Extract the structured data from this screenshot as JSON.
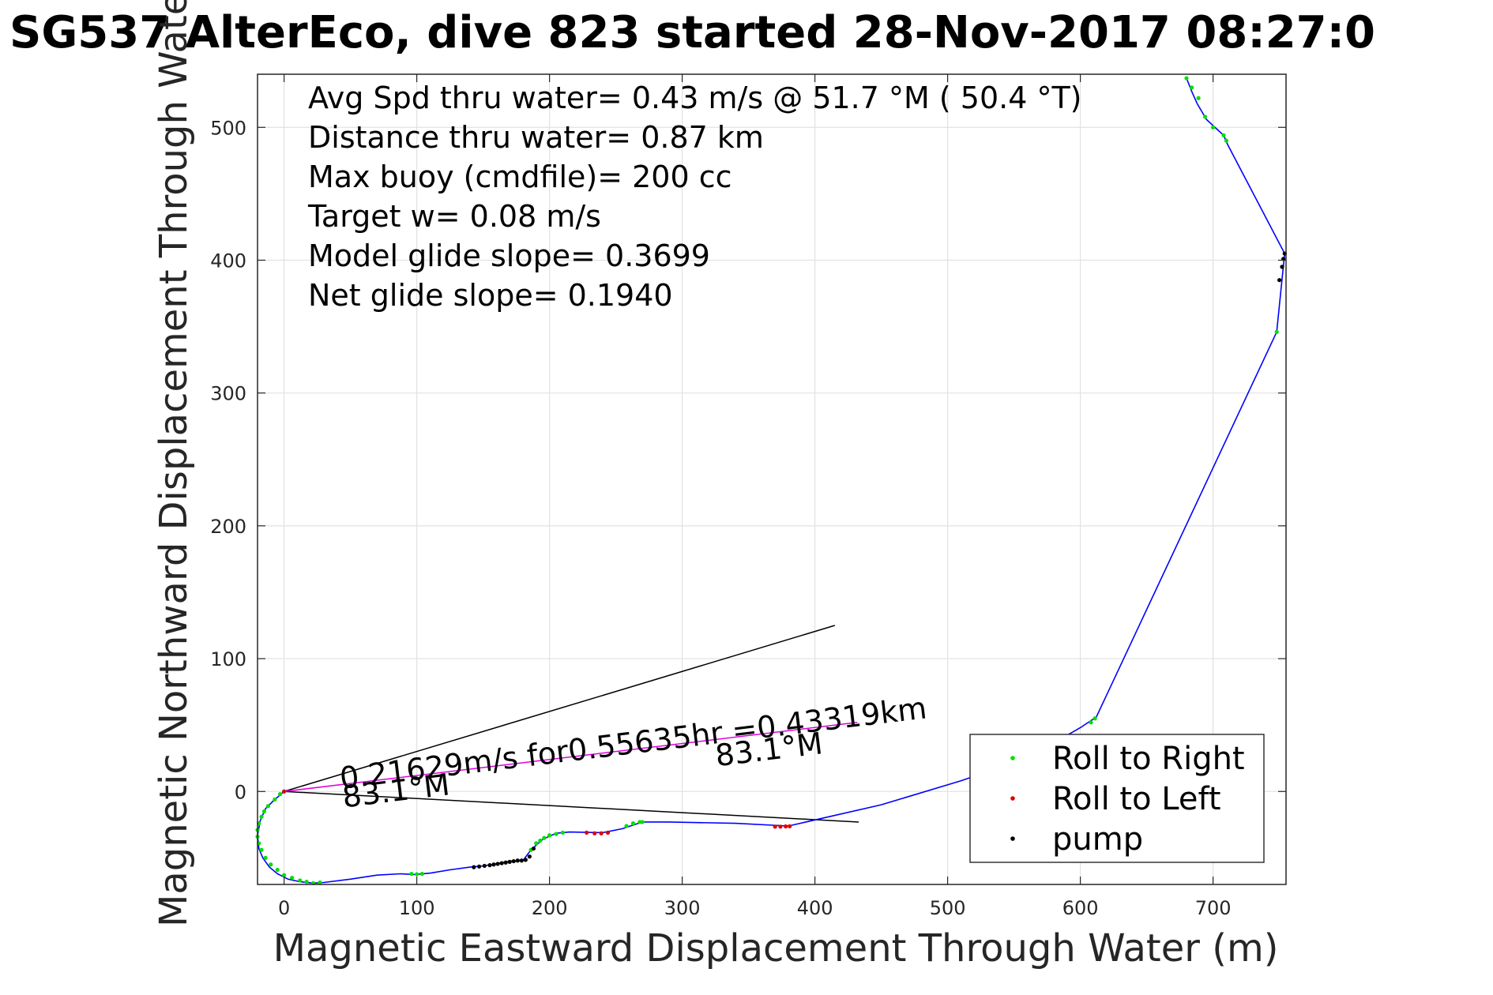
{
  "chart_data": {
    "type": "scatter",
    "title": "SG537 AlterEco, dive 823 started 28-Nov-2017 08:27:0",
    "xlabel": "Magnetic Eastward Displacement Through Water (m)",
    "ylabel": "Magnetic Northward Displacement Through Water (",
    "xlim": [
      -20,
      755
    ],
    "ylim": [
      -70,
      540
    ],
    "xticks": [
      0,
      100,
      200,
      300,
      400,
      500,
      600,
      700
    ],
    "yticks": [
      0,
      100,
      200,
      300,
      400,
      500
    ],
    "grid": true,
    "info_text": [
      "Avg Spd thru water=  0.43 m/s @  51.7 °M ( 50.4 °T)",
      "Distance thru water=  0.87 km",
      "Max buoy (cmdfile)= 200 cc",
      "Target w= 0.08 m/s",
      "Model glide slope= 0.3699",
      "Net glide slope= 0.1940"
    ],
    "legend": {
      "placement": "bottom-right",
      "entries": [
        {
          "label": "Roll to Right",
          "color": "#00e000"
        },
        {
          "label": "Roll to Left",
          "color": "#e00000"
        },
        {
          "label": "pump",
          "color": "#000000"
        }
      ]
    },
    "track": {
      "color": "#0000ff",
      "points": [
        [
          0,
          0
        ],
        [
          -8,
          -7
        ],
        [
          -14,
          -13
        ],
        [
          -18,
          -22
        ],
        [
          -20,
          -33
        ],
        [
          -19,
          -43
        ],
        [
          -16,
          -50
        ],
        [
          -11,
          -57
        ],
        [
          -5,
          -62
        ],
        [
          3,
          -66
        ],
        [
          12,
          -68
        ],
        [
          22,
          -69
        ],
        [
          30,
          -68.5
        ],
        [
          50,
          -66
        ],
        [
          70,
          -63
        ],
        [
          88,
          -62
        ],
        [
          98,
          -62.5
        ],
        [
          110,
          -61.5
        ],
        [
          125,
          -59
        ],
        [
          140,
          -57
        ],
        [
          150,
          -56
        ],
        [
          160,
          -54.5
        ],
        [
          170,
          -52.5
        ],
        [
          180,
          -52
        ],
        [
          186,
          -44
        ],
        [
          195,
          -36
        ],
        [
          205,
          -31.5
        ],
        [
          215,
          -30.5
        ],
        [
          240,
          -31
        ],
        [
          255,
          -28
        ],
        [
          270,
          -23
        ],
        [
          290,
          -23
        ],
        [
          340,
          -24
        ],
        [
          380,
          -26
        ],
        [
          450,
          -10
        ],
        [
          510,
          8
        ],
        [
          560,
          25
        ],
        [
          600,
          48
        ],
        [
          612,
          56
        ],
        [
          748,
          346
        ],
        [
          752,
          386
        ],
        [
          754,
          405
        ],
        [
          711,
          487
        ],
        [
          708,
          494
        ],
        [
          695,
          506
        ],
        [
          688,
          518
        ],
        [
          684,
          527
        ],
        [
          680,
          537
        ]
      ]
    },
    "roll_right_points": [
      [
        -3,
        -2
      ],
      [
        -7,
        -6
      ],
      [
        -12,
        -11
      ],
      [
        -15,
        -15
      ],
      [
        -17,
        -19
      ],
      [
        -19,
        -24
      ],
      [
        -20,
        -29
      ],
      [
        -20,
        -34
      ],
      [
        -19,
        -39
      ],
      [
        -17,
        -44
      ],
      [
        -14,
        -50
      ],
      [
        -10,
        -55
      ],
      [
        -5,
        -59
      ],
      [
        0,
        -63
      ],
      [
        6,
        -65
      ],
      [
        12,
        -67
      ],
      [
        17,
        -68
      ],
      [
        22,
        -69
      ],
      [
        27,
        -68.5
      ],
      [
        96,
        -62
      ],
      [
        100,
        -62.3
      ],
      [
        104,
        -62
      ],
      [
        186,
        -44
      ],
      [
        190,
        -39
      ],
      [
        193,
        -37
      ],
      [
        196,
        -35
      ],
      [
        200,
        -33
      ],
      [
        205,
        -32
      ],
      [
        210,
        -31
      ],
      [
        258,
        -26
      ],
      [
        263,
        -24
      ],
      [
        268,
        -23
      ],
      [
        270,
        -23
      ],
      [
        608,
        52
      ],
      [
        611,
        55
      ],
      [
        748,
        346
      ],
      [
        754,
        405
      ],
      [
        680,
        537
      ],
      [
        684,
        530
      ],
      [
        689,
        522
      ],
      [
        694,
        508
      ],
      [
        700,
        500
      ],
      [
        708,
        494
      ],
      [
        710,
        490
      ]
    ],
    "roll_left_points": [
      [
        0,
        0
      ],
      [
        228,
        -31
      ],
      [
        234,
        -31.5
      ],
      [
        239,
        -31.5
      ],
      [
        244,
        -31
      ],
      [
        370,
        -26.5
      ],
      [
        374,
        -26.5
      ],
      [
        378,
        -26.3
      ],
      [
        381,
        -26.2
      ]
    ],
    "pump_points": [
      [
        143,
        -57
      ],
      [
        147,
        -56.5
      ],
      [
        151,
        -56
      ],
      [
        155,
        -55.5
      ],
      [
        158,
        -55
      ],
      [
        161,
        -54.5
      ],
      [
        164,
        -54
      ],
      [
        167,
        -53.5
      ],
      [
        170,
        -53
      ],
      [
        173,
        -52.5
      ],
      [
        176,
        -52
      ],
      [
        179,
        -52
      ],
      [
        182,
        -51.5
      ],
      [
        185,
        -49
      ],
      [
        188,
        -43
      ],
      [
        750,
        385
      ],
      [
        752,
        395
      ],
      [
        753,
        401
      ],
      [
        754,
        405
      ]
    ],
    "reference_lines": [
      {
        "from": [
          0,
          0
        ],
        "to": [
          415,
          125
        ],
        "color": "#000000"
      },
      {
        "from": [
          0,
          0
        ],
        "to": [
          433,
          -23
        ],
        "color": "#000000"
      },
      {
        "from": [
          0,
          0
        ],
        "to": [
          432,
          52
        ],
        "color": "#e000e0"
      }
    ],
    "annotations": [
      {
        "text": "0.21629m/s for0.55635hr =0.43319km",
        "x": 43,
        "y": 2,
        "angle": -6.9
      },
      {
        "text": "83.1°M",
        "x": 45,
        "y": -12,
        "angle": -6.9
      },
      {
        "text": "83.1°M",
        "x": 326,
        "y": 19,
        "angle": -6.9
      }
    ]
  }
}
